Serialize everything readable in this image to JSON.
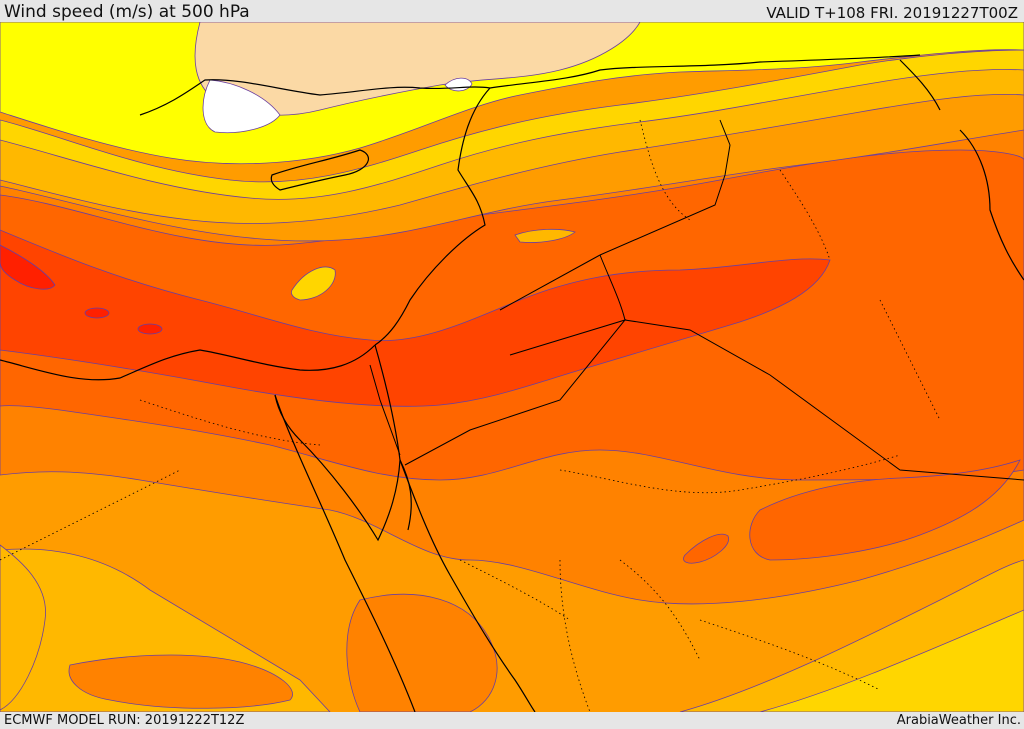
{
  "header": {
    "title": "Wind speed (m/s) at 500 hPa",
    "valid_time": "VALID T+108 FRI. 20191227T00Z"
  },
  "footer": {
    "model_run": "ECMWF MODEL RUN: 20191222T12Z",
    "credit": "ArabiaWeather Inc."
  },
  "map": {
    "variable": "wind speed",
    "level": "500 hPa",
    "units": "m/s",
    "colors": {
      "calm": "#ffffff",
      "peach": "#fbd9a5",
      "yellow": "#ffff00",
      "gold": "#ffd600",
      "amber": "#ffb800",
      "orange_light": "#ff9c00",
      "orange": "#ff8200",
      "orange_dark": "#ff6600",
      "red_orange": "#ff4400",
      "red": "#ff2000",
      "contour": "#6a3fa0",
      "coast": "#000000"
    }
  }
}
